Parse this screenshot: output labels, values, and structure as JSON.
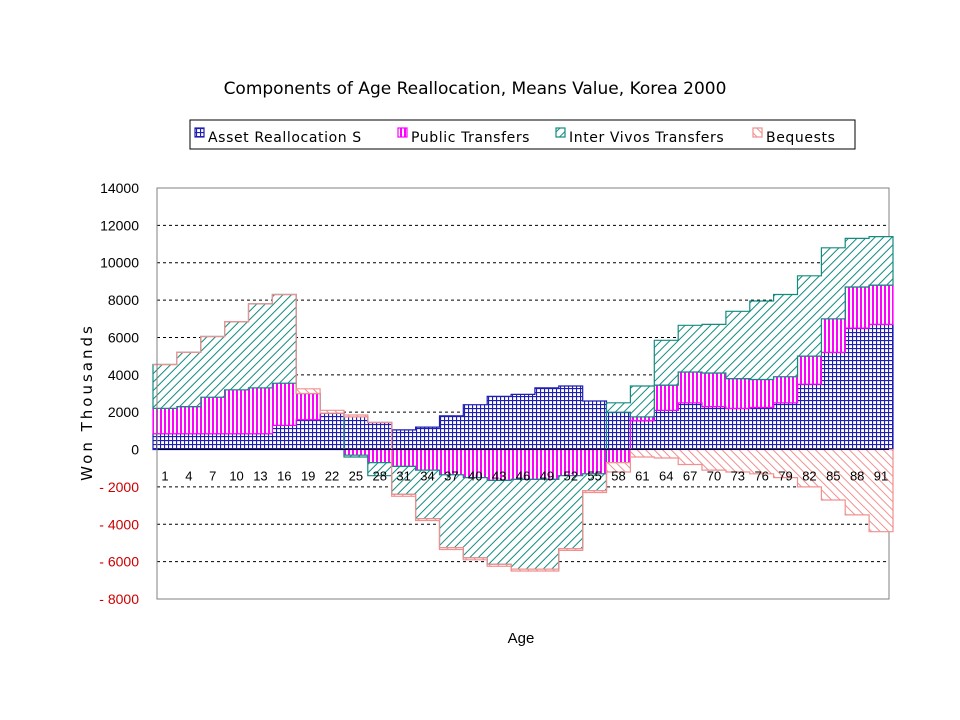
{
  "chart_data": {
    "type": "area",
    "stacked": true,
    "title": "Components of Age Reallocation, Means Value, Korea 2000",
    "xlabel": "Age",
    "ylabel": "Won Thousands",
    "ylim": [
      -8000,
      14000
    ],
    "yticks": [
      14000,
      12000,
      10000,
      8000,
      6000,
      4000,
      2000,
      0,
      -2000,
      -4000,
      -6000,
      -8000
    ],
    "ytick_labels": [
      "14000",
      "12000",
      "10000",
      "8000",
      "6000",
      "4000",
      "2000",
      "0",
      "- 2000",
      "- 4000",
      "- 6000",
      "- 8000"
    ],
    "negative_tick_color": "#cc0000",
    "x_tick_labels": [
      "1",
      "4",
      "7",
      "10",
      "13",
      "16",
      "19",
      "22",
      "25",
      "28",
      "31",
      "34",
      "37",
      "40",
      "43",
      "46",
      "49",
      "52",
      "55",
      "58",
      "61",
      "64",
      "67",
      "70",
      "73",
      "76",
      "79",
      "82",
      "85",
      "88",
      "91"
    ],
    "x_ages": [
      1,
      4,
      7,
      10,
      13,
      16,
      19,
      22,
      25,
      28,
      31,
      34,
      37,
      40,
      43,
      46,
      49,
      52,
      55,
      58,
      61,
      64,
      67,
      70,
      73,
      76,
      79,
      82,
      85,
      88,
      91
    ],
    "gridlines": "horizontal dashed",
    "legend_position": "top",
    "series": [
      {
        "name": "Asset Reallocation S",
        "color": "#1e1eb4",
        "pattern": "grid",
        "values": [
          850,
          850,
          850,
          850,
          850,
          1300,
          1600,
          1950,
          1750,
          1450,
          1050,
          1200,
          1800,
          2400,
          2850,
          2950,
          3300,
          3400,
          2600,
          2000,
          1550,
          2100,
          2500,
          2300,
          2200,
          2250,
          2500,
          3500,
          5200,
          6500,
          6700
        ]
      },
      {
        "name": "Public Transfers",
        "color": "#ff00ff",
        "pattern": "vertical",
        "values": [
          1350,
          1450,
          1950,
          2350,
          2450,
          2250,
          1400,
          0,
          -300,
          -700,
          -900,
          -1100,
          -1350,
          -1500,
          -1650,
          -1600,
          -1600,
          -1400,
          -1300,
          -700,
          200,
          1350,
          1650,
          1800,
          1600,
          1500,
          1400,
          1500,
          1800,
          2200,
          2100
        ]
      },
      {
        "name": "Inter Vivos Transfers",
        "color": "#138c80",
        "pattern": "diagonal",
        "values": [
          2350,
          2900,
          3250,
          3650,
          4500,
          4750,
          0,
          0,
          -100,
          -700,
          -1500,
          -2600,
          -3900,
          -4300,
          -4500,
          -4800,
          -4800,
          -3900,
          -900,
          500,
          1650,
          2400,
          2500,
          2600,
          3600,
          4200,
          4400,
          4300,
          3800,
          2600,
          2600
        ]
      },
      {
        "name": "Bequests",
        "color": "#f09090",
        "pattern": "diagonal-reverse",
        "values": [
          0,
          0,
          0,
          0,
          0,
          0,
          250,
          150,
          100,
          0,
          -100,
          -100,
          -100,
          -100,
          -100,
          -100,
          -100,
          -100,
          -100,
          -500,
          -400,
          -450,
          -800,
          -1100,
          -1200,
          -1300,
          -1500,
          -2000,
          -2700,
          -3500,
          -4400
        ]
      }
    ]
  }
}
